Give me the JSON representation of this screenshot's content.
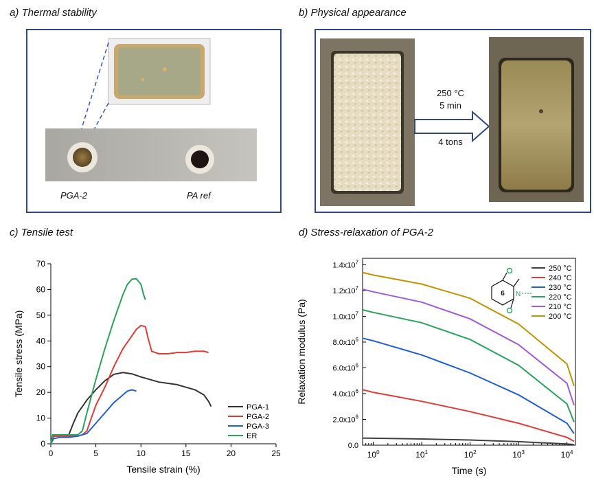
{
  "panels": {
    "a": {
      "title": "a) Thermal stability",
      "labels": [
        "PGA-2",
        "PA ref"
      ]
    },
    "b": {
      "title": "b) Physical appearance",
      "conditions": [
        "250 °C",
        "5 min",
        "4 tons"
      ]
    },
    "c": {
      "title": "c) Tensile test"
    },
    "d": {
      "title": "d) Stress-relaxation of PGA-2"
    }
  },
  "chart_data": [
    {
      "type": "line",
      "xlabel": "Tensile strain (%)",
      "ylabel": "Tensile stress (MPa)",
      "xlim": [
        0,
        25
      ],
      "ylim": [
        0,
        70
      ],
      "xticks": [
        "0",
        "5",
        "10",
        "15",
        "20",
        "25"
      ],
      "yticks": [
        "0",
        "10",
        "20",
        "30",
        "40",
        "50",
        "60",
        "70"
      ],
      "series": [
        {
          "name": "PGA-1",
          "color": "#333333",
          "x": [
            0,
            0.3,
            1,
            2,
            2.5,
            3,
            4,
            5,
            6,
            7,
            8,
            9,
            10,
            11,
            12,
            13,
            14,
            15,
            16,
            17,
            17.5,
            17.8
          ],
          "y": [
            0,
            3,
            3,
            3.5,
            8,
            12,
            17,
            21,
            24.5,
            27,
            27.7,
            27.2,
            26,
            25,
            24,
            23.5,
            23,
            22,
            21,
            19,
            16.5,
            14.5
          ]
        },
        {
          "name": "PGA-2",
          "color": "#e53935",
          "x": [
            0,
            0.3,
            1,
            2,
            3,
            3.5,
            4,
            4.5,
            5,
            6,
            7,
            8,
            9,
            9.5,
            10,
            10.5,
            10.8,
            11.2,
            12,
            13,
            14,
            15,
            16,
            17,
            17.5
          ],
          "y": [
            0,
            3,
            3,
            3,
            3,
            3.5,
            5,
            10,
            15,
            22,
            30,
            37,
            42,
            44.5,
            46,
            45.5,
            41,
            36,
            35,
            35,
            35.5,
            35.5,
            36,
            36,
            35.5
          ]
        },
        {
          "name": "PGA-3",
          "color": "#1e5fd6",
          "x": [
            0,
            0.3,
            1,
            2,
            3,
            4,
            5,
            6,
            7,
            8,
            8.5,
            9,
            9.5
          ],
          "y": [
            0,
            2,
            2.5,
            2.5,
            3,
            4,
            8,
            12,
            16,
            19,
            20.5,
            21,
            20.5
          ]
        },
        {
          "name": "ER",
          "color": "#27a35a",
          "x": [
            0,
            0.2,
            1,
            2,
            3,
            3.5,
            4,
            5,
            6,
            7,
            8,
            8.5,
            9,
            9.5,
            10,
            10.3,
            10.5
          ],
          "y": [
            0,
            3.5,
            3.5,
            3.5,
            3.5,
            5,
            12,
            25,
            37,
            48,
            58,
            62,
            64,
            64.2,
            62,
            58,
            56
          ]
        }
      ]
    },
    {
      "type": "line",
      "xlabel": "Time (s)",
      "ylabel": "Relaxation modulus (Pa)",
      "xscale": "log",
      "xlim": [
        0.6,
        15000
      ],
      "ylim": [
        0,
        14500000
      ],
      "xticks": [
        {
          "value": 1,
          "base": "10",
          "exp": "0"
        },
        {
          "value": 10,
          "base": "10",
          "exp": "1"
        },
        {
          "value": 100,
          "base": "10",
          "exp": "2"
        },
        {
          "value": 1000,
          "base": "10",
          "exp": "3"
        },
        {
          "value": 10000,
          "base": "10",
          "exp": "4"
        }
      ],
      "yticks": [
        {
          "value": 0,
          "mantissa": "0.0",
          "exp": ""
        },
        {
          "value": 2000000,
          "mantissa": "2.0x10",
          "exp": "6"
        },
        {
          "value": 4000000,
          "mantissa": "4.0x10",
          "exp": "6"
        },
        {
          "value": 6000000,
          "mantissa": "6.0x10",
          "exp": "6"
        },
        {
          "value": 8000000,
          "mantissa": "8.0x10",
          "exp": "6"
        },
        {
          "value": 10000000,
          "mantissa": "1.0x10",
          "exp": "7"
        },
        {
          "value": 12000000,
          "mantissa": "1.2x10",
          "exp": "7"
        },
        {
          "value": 14000000,
          "mantissa": "1.4x10",
          "exp": "7"
        }
      ],
      "ring_label": "6",
      "ring_atom": "N",
      "series": [
        {
          "name": "250 °C",
          "color": "#404040",
          "x": [
            0.6,
            1,
            10,
            100,
            1000,
            10000,
            14000
          ],
          "y": [
            550000,
            540000,
            480000,
            400000,
            270000,
            90000,
            50000
          ]
        },
        {
          "name": "240 °C",
          "color": "#e53935",
          "x": [
            0.6,
            1,
            10,
            100,
            1000,
            10000,
            14000
          ],
          "y": [
            4300000,
            4100000,
            3400000,
            2600000,
            1700000,
            600000,
            300000
          ]
        },
        {
          "name": "230 °C",
          "color": "#1e5fd6",
          "x": [
            0.6,
            1,
            10,
            100,
            1000,
            10000,
            14000
          ],
          "y": [
            8300000,
            8100000,
            7000000,
            5600000,
            3900000,
            1700000,
            900000
          ]
        },
        {
          "name": "220 °C",
          "color": "#27a35a",
          "x": [
            0.6,
            1,
            10,
            100,
            1000,
            10000,
            14000
          ],
          "y": [
            10500000,
            10300000,
            9500000,
            8200000,
            6200000,
            3200000,
            1800000
          ]
        },
        {
          "name": "210 °C",
          "color": "#a05ad8",
          "x": [
            0.6,
            1,
            10,
            100,
            1000,
            10000,
            14000
          ],
          "y": [
            12100000,
            11900000,
            11100000,
            9800000,
            7800000,
            4800000,
            3100000
          ]
        },
        {
          "name": "200 °C",
          "color": "#c19300",
          "x": [
            0.6,
            1,
            10,
            100,
            1000,
            10000,
            14000
          ],
          "y": [
            13400000,
            13200000,
            12500000,
            11400000,
            9400000,
            6300000,
            4600000
          ]
        }
      ]
    }
  ]
}
